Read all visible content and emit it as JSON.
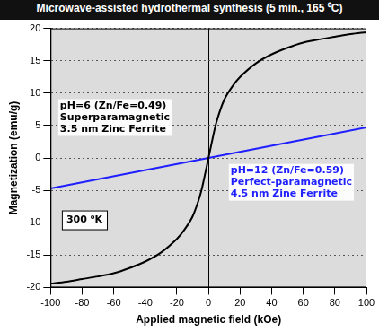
{
  "chart_data": {
    "type": "line",
    "title": "Microwave-assisted hydrothermal synthesis (5 min., 165 ⁰C)",
    "x_label": "Applied magnetic field (kOe)",
    "y_label": "Magnetization (emu/g)",
    "xlim": [
      -100,
      100
    ],
    "xticks": [
      -100,
      -80,
      -60,
      -40,
      -20,
      0,
      20,
      40,
      60,
      80,
      100
    ],
    "ylim": [
      -20,
      20
    ],
    "yticks": [
      -20,
      -15,
      -10,
      -5,
      0,
      5,
      10,
      15,
      20
    ],
    "grid": true,
    "series": [
      {
        "color": "#000000",
        "x": [
          -100,
          -90,
          -80,
          -70,
          -60,
          -50,
          -40,
          -30,
          -20,
          -15,
          -10,
          -5,
          -2,
          0,
          2,
          5,
          10,
          15,
          20,
          30,
          40,
          50,
          60,
          70,
          80,
          90,
          100
        ],
        "values": [
          -19.4,
          -19.1,
          -18.7,
          -18.3,
          -17.8,
          -17.0,
          -16.0,
          -14.6,
          -12.5,
          -11.0,
          -9.0,
          -5.5,
          -2.3,
          0,
          2.3,
          5.5,
          9.0,
          11.0,
          12.5,
          14.6,
          16.0,
          17.0,
          17.8,
          18.3,
          18.7,
          19.1,
          19.4
        ]
      },
      {
        "color": "#1f1fff",
        "x": [
          -100,
          -50,
          0,
          50,
          100
        ],
        "values": [
          -4.7,
          -2.35,
          0,
          2.35,
          4.7
        ]
      }
    ],
    "annotations": [
      {
        "lines": [
          "pH=6 (Zn/Fe=0.49)",
          "Superparamagnetic",
          "3.5 nm Zinc Ferrite"
        ],
        "color": "#000000"
      },
      {
        "lines": [
          "pH=12 (Zn/Fe=0.59)",
          "Perfect-paramagnetic",
          "4.5 nm Zine Ferrite"
        ],
        "color": "#1f1fff"
      },
      {
        "lines": [
          "300 ⁰K"
        ],
        "color": "#000000"
      }
    ]
  }
}
